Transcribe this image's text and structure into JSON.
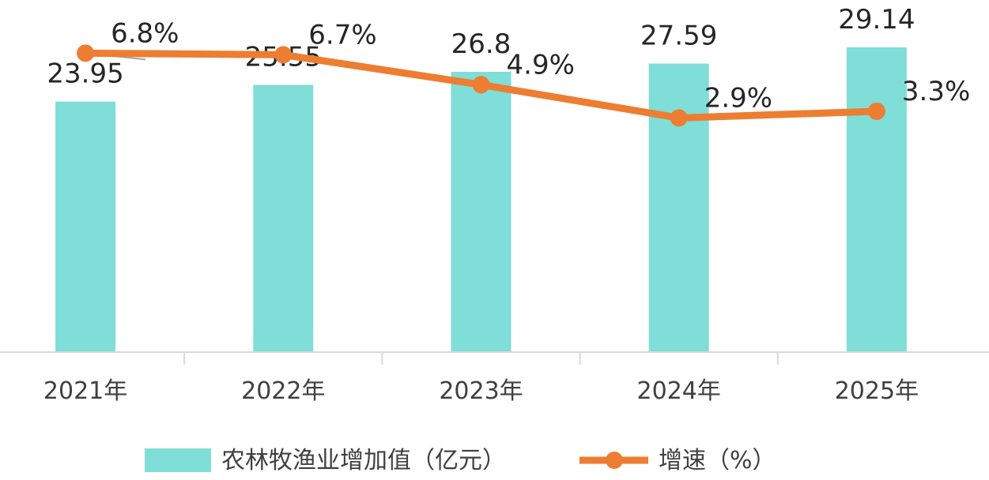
{
  "chart_data": {
    "type": "bar",
    "categories": [
      "2021年",
      "2022年",
      "2023年",
      "2024年",
      "2025年"
    ],
    "series": [
      {
        "name": "农林牧渔业增加值（亿元）",
        "kind": "bar",
        "values": [
          23.95,
          25.55,
          26.8,
          27.59,
          29.14
        ],
        "labels": [
          "23.95",
          "25.55",
          "26.8",
          "27.59",
          "29.14"
        ]
      },
      {
        "name": "增速（%）",
        "kind": "line",
        "values": [
          6.8,
          6.7,
          4.9,
          2.9,
          3.3
        ],
        "labels": [
          "6.8%",
          "6.7%",
          "4.9%",
          "2.9%",
          "3.3%"
        ]
      }
    ],
    "ylim": [
      0,
      29.14
    ],
    "y2lim": [
      -18.9,
      10
    ],
    "grid": false,
    "legend": "bottom",
    "colors": {
      "bar": "#7fded7",
      "line": "#ed7d31",
      "axis": "#d9d9d9"
    }
  }
}
